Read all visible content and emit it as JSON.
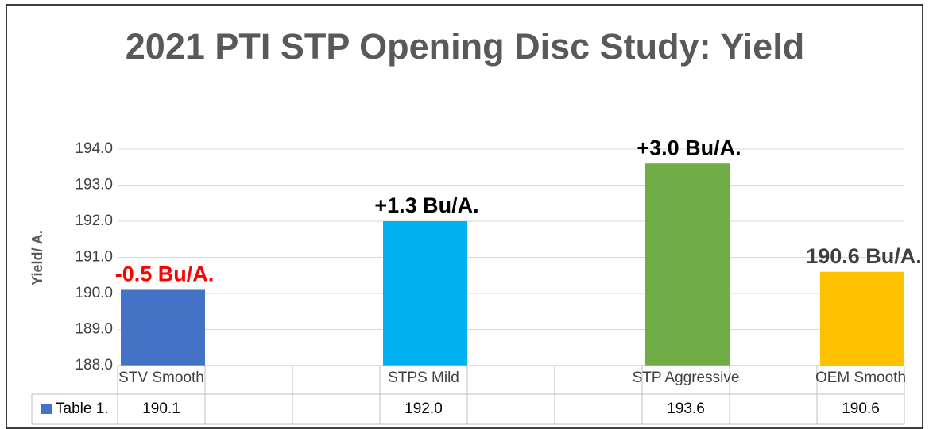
{
  "chart_data": {
    "type": "bar",
    "title": "2021 PTI STP Opening Disc Study: Yield",
    "y_label": "Yield/ A.",
    "categories": [
      "STV Smooth",
      null,
      null,
      "STPS Mild",
      null,
      null,
      "STP Aggressive",
      null,
      "OEM Smooth"
    ],
    "series": [
      {
        "name": "Table 1.",
        "color": "#4472c4",
        "colors": [
          "#4472c4",
          null,
          null,
          "#00b0f0",
          null,
          null,
          "#70ad47",
          null,
          "#ffc000"
        ],
        "values": [
          190.1,
          null,
          null,
          192.0,
          null,
          null,
          193.6,
          null,
          190.6
        ],
        "value_labels": [
          "190.1",
          null,
          null,
          "192.0",
          null,
          null,
          "193.6",
          null,
          "190.6"
        ]
      }
    ],
    "annotations": [
      "-0.5 Bu/A.",
      null,
      null,
      "+1.3 Bu/A.",
      null,
      null,
      "+3.0 Bu/A.",
      null,
      "190.6 Bu/A."
    ],
    "annotation_colors": [
      "#ff0000",
      null,
      null,
      "#000000",
      null,
      null,
      "#000000",
      null,
      "#404040"
    ],
    "ylim": [
      188,
      194
    ],
    "yticks": [
      {
        "value": 188,
        "label": "188.0"
      },
      {
        "value": 189,
        "label": "189.0"
      },
      {
        "value": 190,
        "label": "190.0"
      },
      {
        "value": 191,
        "label": "191.0"
      },
      {
        "value": 192,
        "label": "192.0"
      },
      {
        "value": 193,
        "label": "193.0"
      },
      {
        "value": 194,
        "label": "194.0"
      }
    ],
    "grid": true,
    "data_table": true
  }
}
